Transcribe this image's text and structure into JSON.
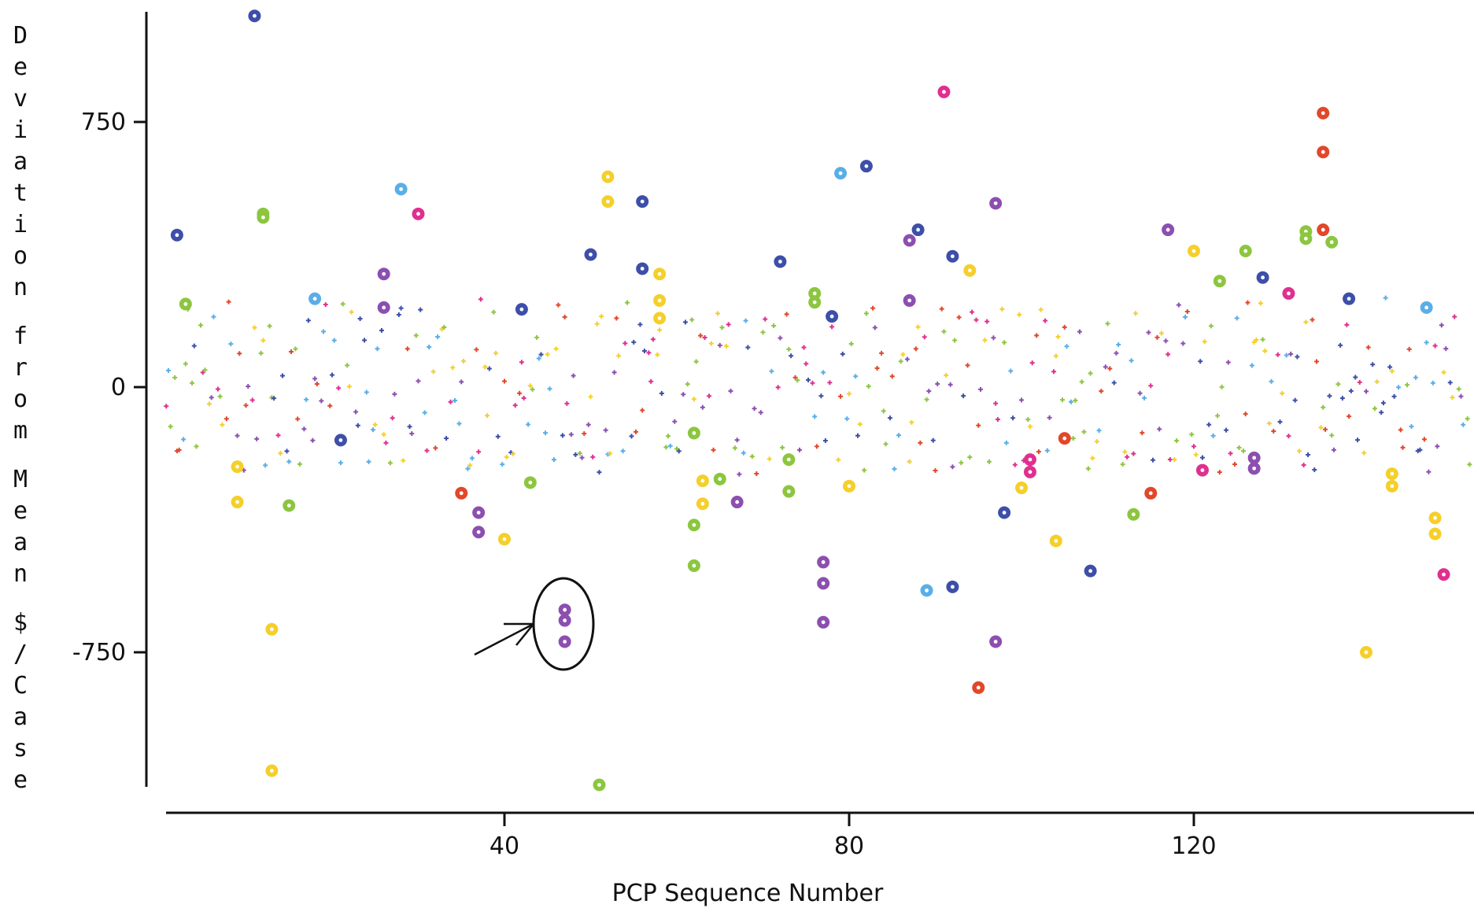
{
  "chart_data": {
    "type": "scatter",
    "title": "",
    "xlabel": "PCP Sequence Number",
    "ylabel": "Deviation from Mean $/Case",
    "x_ticks": [
      40,
      80,
      120
    ],
    "y_ticks": [
      750,
      0,
      -750
    ],
    "xlim": [
      0,
      152
    ],
    "ylim": [
      -1130,
      1050
    ],
    "grid": false,
    "legend": "none",
    "colors": {
      "yellow": "#f5cf2a",
      "green": "#8cc63f",
      "blue": "#3d4fa8",
      "lightblue": "#5aaee8",
      "purple": "#8c4fb0",
      "pink": "#e0308f",
      "red": "#e2472a",
      "axis": "#111111"
    },
    "outliers": [
      {
        "x": 2,
        "y": 430,
        "c": "blue"
      },
      {
        "x": 3,
        "y": 235,
        "c": "green"
      },
      {
        "x": 9,
        "y": -225,
        "c": "yellow"
      },
      {
        "x": 9,
        "y": -325,
        "c": "yellow"
      },
      {
        "x": 11,
        "y": 1050,
        "c": "blue"
      },
      {
        "x": 12,
        "y": 490,
        "c": "green"
      },
      {
        "x": 12,
        "y": 480,
        "c": "green"
      },
      {
        "x": 13,
        "y": -685,
        "c": "yellow"
      },
      {
        "x": 13,
        "y": -1085,
        "c": "yellow"
      },
      {
        "x": 15,
        "y": -335,
        "c": "green"
      },
      {
        "x": 18,
        "y": 250,
        "c": "lightblue"
      },
      {
        "x": 21,
        "y": -150,
        "c": "blue"
      },
      {
        "x": 26,
        "y": 320,
        "c": "purple"
      },
      {
        "x": 26,
        "y": 225,
        "c": "purple"
      },
      {
        "x": 28,
        "y": 560,
        "c": "lightblue"
      },
      {
        "x": 30,
        "y": 490,
        "c": "pink"
      },
      {
        "x": 35,
        "y": -300,
        "c": "red"
      },
      {
        "x": 37,
        "y": -355,
        "c": "purple"
      },
      {
        "x": 37,
        "y": -410,
        "c": "purple"
      },
      {
        "x": 40,
        "y": -430,
        "c": "yellow"
      },
      {
        "x": 42,
        "y": 220,
        "c": "blue"
      },
      {
        "x": 43,
        "y": -270,
        "c": "green"
      },
      {
        "x": 47,
        "y": -630,
        "c": "purple"
      },
      {
        "x": 47,
        "y": -660,
        "c": "purple"
      },
      {
        "x": 47,
        "y": -720,
        "c": "purple"
      },
      {
        "x": 50,
        "y": 375,
        "c": "blue"
      },
      {
        "x": 51,
        "y": -1125,
        "c": "green"
      },
      {
        "x": 52,
        "y": 595,
        "c": "yellow"
      },
      {
        "x": 52,
        "y": 525,
        "c": "yellow"
      },
      {
        "x": 56,
        "y": 525,
        "c": "blue"
      },
      {
        "x": 56,
        "y": 335,
        "c": "blue"
      },
      {
        "x": 58,
        "y": 320,
        "c": "yellow"
      },
      {
        "x": 58,
        "y": 245,
        "c": "yellow"
      },
      {
        "x": 58,
        "y": 195,
        "c": "yellow"
      },
      {
        "x": 62,
        "y": -130,
        "c": "green"
      },
      {
        "x": 62,
        "y": -390,
        "c": "green"
      },
      {
        "x": 62,
        "y": -505,
        "c": "green"
      },
      {
        "x": 63,
        "y": -265,
        "c": "yellow"
      },
      {
        "x": 63,
        "y": -330,
        "c": "yellow"
      },
      {
        "x": 65,
        "y": -260,
        "c": "green"
      },
      {
        "x": 67,
        "y": -325,
        "c": "purple"
      },
      {
        "x": 72,
        "y": 355,
        "c": "blue"
      },
      {
        "x": 73,
        "y": -205,
        "c": "green"
      },
      {
        "x": 73,
        "y": -295,
        "c": "green"
      },
      {
        "x": 76,
        "y": 265,
        "c": "green"
      },
      {
        "x": 76,
        "y": 240,
        "c": "green"
      },
      {
        "x": 77,
        "y": -495,
        "c": "purple"
      },
      {
        "x": 77,
        "y": -555,
        "c": "purple"
      },
      {
        "x": 77,
        "y": -665,
        "c": "purple"
      },
      {
        "x": 78,
        "y": 200,
        "c": "blue"
      },
      {
        "x": 79,
        "y": 605,
        "c": "lightblue"
      },
      {
        "x": 80,
        "y": -280,
        "c": "yellow"
      },
      {
        "x": 82,
        "y": 625,
        "c": "blue"
      },
      {
        "x": 87,
        "y": 415,
        "c": "purple"
      },
      {
        "x": 87,
        "y": 245,
        "c": "purple"
      },
      {
        "x": 88,
        "y": 445,
        "c": "blue"
      },
      {
        "x": 89,
        "y": -575,
        "c": "lightblue"
      },
      {
        "x": 91,
        "y": 835,
        "c": "pink"
      },
      {
        "x": 92,
        "y": 370,
        "c": "blue"
      },
      {
        "x": 92,
        "y": -565,
        "c": "blue"
      },
      {
        "x": 94,
        "y": 330,
        "c": "yellow"
      },
      {
        "x": 95,
        "y": -850,
        "c": "red"
      },
      {
        "x": 97,
        "y": 520,
        "c": "purple"
      },
      {
        "x": 97,
        "y": -720,
        "c": "purple"
      },
      {
        "x": 98,
        "y": -355,
        "c": "blue"
      },
      {
        "x": 100,
        "y": -285,
        "c": "yellow"
      },
      {
        "x": 101,
        "y": -205,
        "c": "pink"
      },
      {
        "x": 101,
        "y": -240,
        "c": "pink"
      },
      {
        "x": 104,
        "y": -435,
        "c": "yellow"
      },
      {
        "x": 105,
        "y": -145,
        "c": "red"
      },
      {
        "x": 108,
        "y": -520,
        "c": "blue"
      },
      {
        "x": 113,
        "y": -360,
        "c": "green"
      },
      {
        "x": 115,
        "y": -300,
        "c": "red"
      },
      {
        "x": 117,
        "y": 445,
        "c": "purple"
      },
      {
        "x": 120,
        "y": 385,
        "c": "yellow"
      },
      {
        "x": 121,
        "y": -235,
        "c": "pink"
      },
      {
        "x": 123,
        "y": 300,
        "c": "green"
      },
      {
        "x": 126,
        "y": 385,
        "c": "green"
      },
      {
        "x": 127,
        "y": -200,
        "c": "purple"
      },
      {
        "x": 127,
        "y": -230,
        "c": "purple"
      },
      {
        "x": 128,
        "y": 310,
        "c": "blue"
      },
      {
        "x": 131,
        "y": 265,
        "c": "pink"
      },
      {
        "x": 133,
        "y": 440,
        "c": "green"
      },
      {
        "x": 133,
        "y": 420,
        "c": "green"
      },
      {
        "x": 135,
        "y": 775,
        "c": "red"
      },
      {
        "x": 135,
        "y": 665,
        "c": "red"
      },
      {
        "x": 135,
        "y": 445,
        "c": "red"
      },
      {
        "x": 136,
        "y": 410,
        "c": "green"
      },
      {
        "x": 138,
        "y": 250,
        "c": "blue"
      },
      {
        "x": 140,
        "y": -750,
        "c": "yellow"
      },
      {
        "x": 143,
        "y": -245,
        "c": "yellow"
      },
      {
        "x": 143,
        "y": -280,
        "c": "yellow"
      },
      {
        "x": 147,
        "y": 225,
        "c": "lightblue"
      },
      {
        "x": 148,
        "y": -370,
        "c": "yellow"
      },
      {
        "x": 148,
        "y": -415,
        "c": "yellow"
      },
      {
        "x": 149,
        "y": -530,
        "c": "pink"
      }
    ],
    "highlight_note": "circled points at x=47 (arrow)",
    "small_points": {
      "description": "dense field of small '+' markers, one per color per PCP, mostly within ±200",
      "count_per_x": 3
    }
  }
}
